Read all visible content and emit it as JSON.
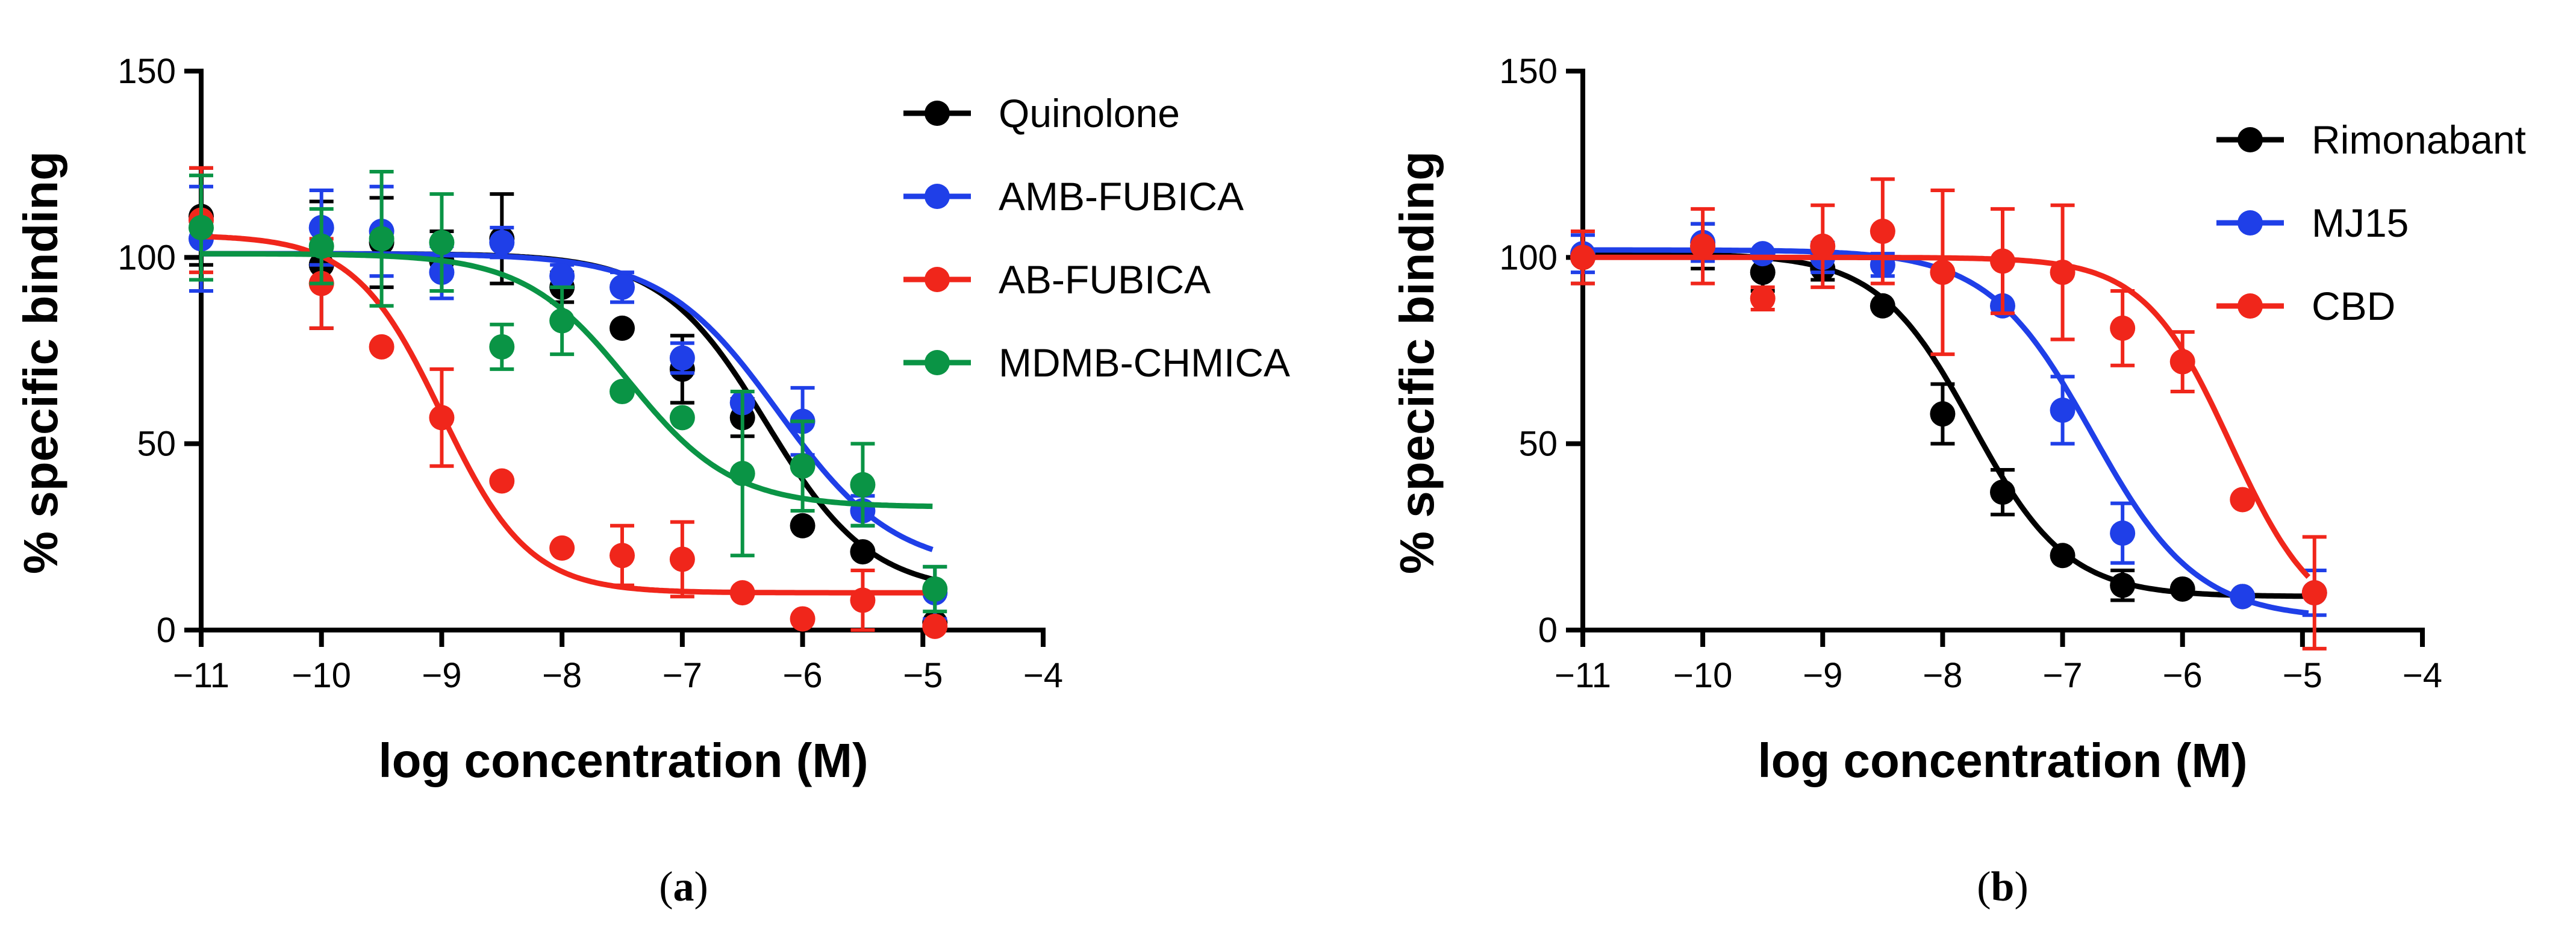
{
  "chart_data": [
    {
      "type": "scatter",
      "panel": "a",
      "title": "",
      "xlabel": "log concentration (M)",
      "ylabel": "% specific binding",
      "xlim": [
        -11,
        -4
      ],
      "ylim": [
        0,
        150
      ],
      "xticks": [
        -11,
        -10,
        -9,
        -8,
        -7,
        -6,
        -5,
        -4
      ],
      "yticks": [
        0,
        50,
        100,
        150
      ],
      "xtick_labels": [
        "−11",
        "−10",
        "−9",
        "−8",
        "−7",
        "−6",
        "−5",
        "−4"
      ],
      "ytick_labels": [
        "0",
        "50",
        "100",
        "150"
      ],
      "legend_position": "top-right",
      "caption": {
        "open": "(",
        "letter": "a",
        "close": ")"
      },
      "series": [
        {
          "name": "Quinolone",
          "color": "#000000",
          "x": [
            -11,
            -10,
            -9.5,
            -9,
            -8.5,
            -8,
            -7.5,
            -7,
            -6.5,
            -6,
            -5.5,
            -4.9
          ],
          "y": [
            111,
            98,
            104,
            99,
            105,
            92,
            81,
            70,
            57,
            28,
            21,
            2
          ],
          "err": [
            13,
            17,
            12,
            8,
            12,
            4,
            0,
            9,
            5,
            0,
            0,
            0
          ],
          "fit": {
            "top": 101,
            "bottom": 10,
            "logEC50": -6.3,
            "hill": 1.0
          }
        },
        {
          "name": "AMB-FUBICA",
          "color": "#1f3fe8",
          "x": [
            -11,
            -10,
            -9.5,
            -9,
            -8.5,
            -8,
            -7.5,
            -7,
            -6.5,
            -6,
            -5.5,
            -4.9
          ],
          "y": [
            105,
            108,
            107,
            96,
            104,
            95,
            92,
            73,
            61,
            56,
            32,
            10
          ],
          "err": [
            14,
            10,
            12,
            7,
            4,
            3,
            4,
            4,
            0,
            9,
            4,
            7
          ],
          "fit": {
            "top": 101,
            "bottom": 16,
            "logEC50": -6.2,
            "hill": 0.9
          }
        },
        {
          "name": "AB-FUBICA",
          "color": "#f0261b",
          "x": [
            -11,
            -10,
            -9.5,
            -9,
            -8.5,
            -8,
            -7.5,
            -7,
            -6.5,
            -6,
            -5.5,
            -4.9
          ],
          "y": [
            110,
            93,
            76,
            57,
            40,
            22,
            20,
            19,
            10,
            3,
            8,
            1
          ],
          "err": [
            14,
            12,
            0,
            13,
            0,
            0,
            8,
            10,
            0,
            0,
            8,
            0
          ],
          "fit": {
            "top": 106,
            "bottom": 10,
            "logEC50": -9.0,
            "hill": 1.2
          }
        },
        {
          "name": "MDMB-CHMICA",
          "color": "#0a9445",
          "x": [
            -11,
            -10,
            -9.5,
            -9,
            -8.5,
            -8,
            -7.5,
            -7,
            -6.5,
            -6,
            -5.5,
            -4.9
          ],
          "y": [
            108,
            103,
            105,
            104,
            76,
            83,
            64,
            57,
            42,
            44,
            39,
            11
          ],
          "err": [
            14,
            10,
            18,
            13,
            6,
            9,
            0,
            0,
            22,
            12,
            11,
            6
          ],
          "fit": {
            "top": 101,
            "bottom": 33,
            "logEC50": -7.45,
            "hill": 1.0
          }
        }
      ]
    },
    {
      "type": "scatter",
      "panel": "b",
      "title": "",
      "xlabel": "log concentration (M)",
      "ylabel": "% specific binding",
      "xlim": [
        -11,
        -4
      ],
      "ylim": [
        0,
        150
      ],
      "xticks": [
        -11,
        -10,
        -9,
        -8,
        -7,
        -6,
        -5,
        -4
      ],
      "yticks": [
        0,
        50,
        100,
        150
      ],
      "xtick_labels": [
        "−11",
        "−10",
        "−9",
        "−8",
        "−7",
        "−6",
        "−5",
        "−4"
      ],
      "ytick_labels": [
        "0",
        "50",
        "100",
        "150"
      ],
      "legend_position": "top-right",
      "caption": {
        "open": "(",
        "letter": "b",
        "close": ")"
      },
      "series": [
        {
          "name": "Rimonabant",
          "color": "#000000",
          "x": [
            -11,
            -10,
            -9.5,
            -9,
            -8.5,
            -8,
            -7.5,
            -7,
            -6.5,
            -6,
            -5.5
          ],
          "y": [
            100,
            103,
            96,
            97,
            87,
            58,
            37,
            20,
            12,
            11,
            9
          ],
          "err": [
            7,
            6,
            5,
            3,
            0,
            8,
            6,
            0,
            4,
            0,
            0
          ],
          "fit": {
            "top": 101,
            "bottom": 9,
            "logEC50": -7.75,
            "hill": 1.1
          }
        },
        {
          "name": "MJ15",
          "color": "#1f3fe8",
          "x": [
            -11,
            -10,
            -9.5,
            -9,
            -8.5,
            -7.5,
            -7,
            -6.5,
            -5.5,
            -4.9
          ],
          "y": [
            101,
            104,
            101,
            100,
            98,
            87,
            59,
            26,
            9,
            10
          ],
          "err": [
            5,
            5,
            0,
            4,
            3,
            0,
            9,
            8,
            0,
            6
          ],
          "fit": {
            "top": 102,
            "bottom": 3,
            "logEC50": -6.75,
            "hill": 1.0
          }
        },
        {
          "name": "CBD",
          "color": "#f0261b",
          "x": [
            -11,
            -10,
            -9.5,
            -9,
            -8.5,
            -8,
            -7.5,
            -7,
            -6.5,
            -6,
            -5.5,
            -4.9
          ],
          "y": [
            100,
            103,
            89,
            103,
            107,
            96,
            99,
            96,
            81,
            72,
            35,
            10
          ],
          "err": [
            7,
            10,
            3,
            11,
            14,
            22,
            14,
            18,
            10,
            8,
            0,
            15
          ],
          "fit": {
            "top": 100,
            "bottom": 0,
            "logEC50": -5.6,
            "hill": 1.2
          }
        }
      ]
    }
  ]
}
